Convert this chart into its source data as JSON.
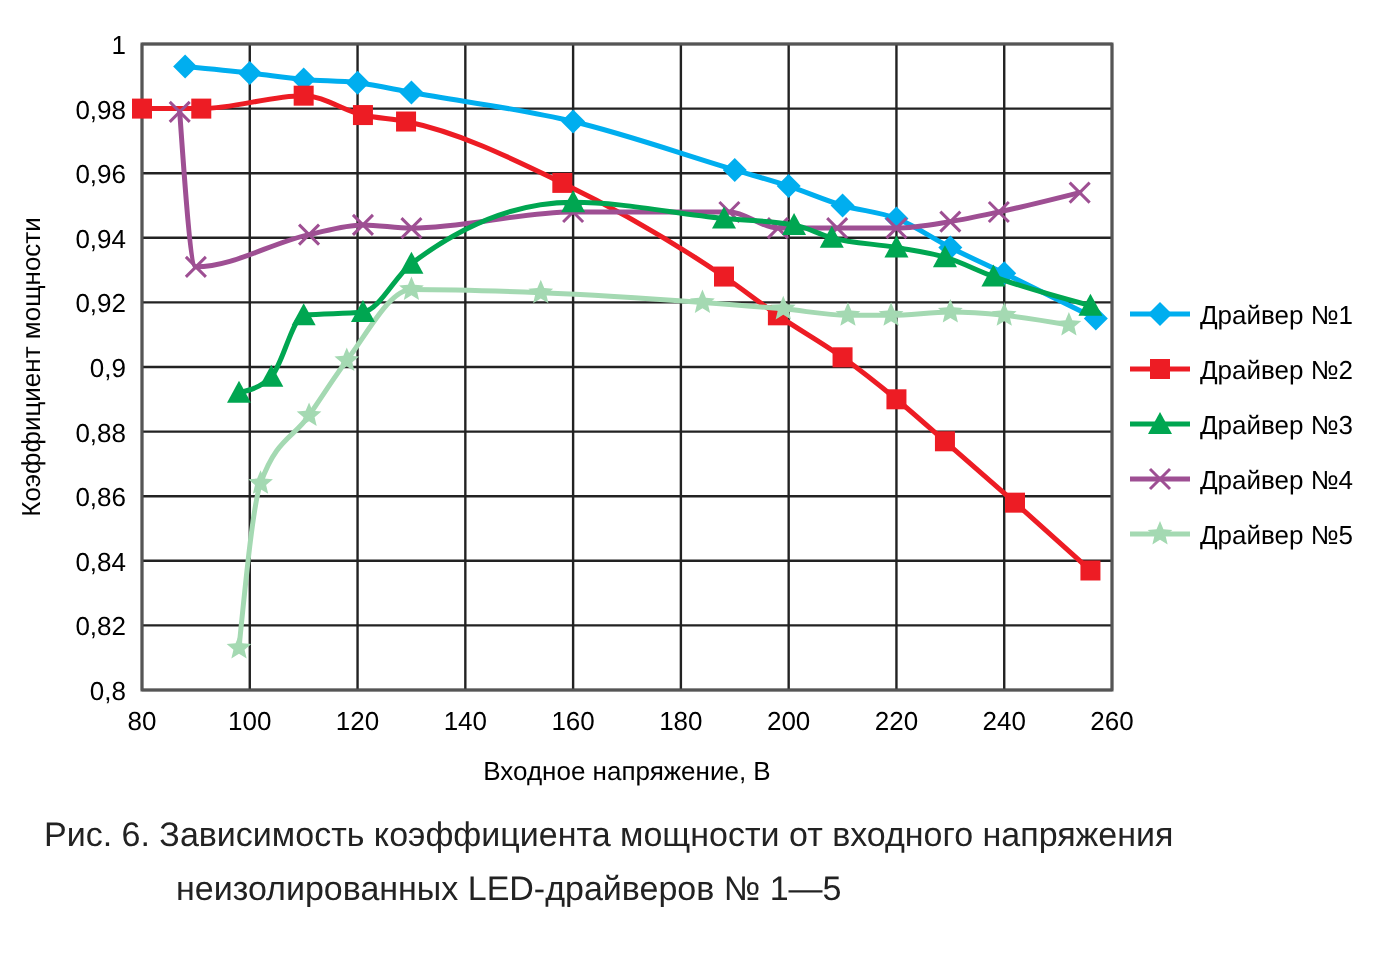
{
  "chart_data": {
    "type": "line",
    "xlabel": "Входное напряжение, В",
    "ylabel": "Коэффициент мощности",
    "xlim": [
      80,
      260
    ],
    "xticks": [
      80,
      100,
      120,
      140,
      160,
      180,
      200,
      220,
      240,
      260
    ],
    "ylim": [
      0.8,
      1
    ],
    "yticks": [
      {
        "value": 0.8,
        "label": "0,8"
      },
      {
        "value": 0.82,
        "label": "0,82"
      },
      {
        "value": 0.84,
        "label": "0,84"
      },
      {
        "value": 0.86,
        "label": "0,86"
      },
      {
        "value": 0.88,
        "label": "0,88"
      },
      {
        "value": 0.9,
        "label": "0,9"
      },
      {
        "value": 0.92,
        "label": "0,92"
      },
      {
        "value": 0.94,
        "label": "0,94"
      },
      {
        "value": 0.96,
        "label": "0,96"
      },
      {
        "value": 0.98,
        "label": "0,98"
      },
      {
        "value": 1,
        "label": "1"
      }
    ],
    "grid": true,
    "legend": "right",
    "line_style": "solid",
    "series": [
      {
        "name": "Драйвер №1",
        "color": "#00aeef",
        "marker": "diamond",
        "x": [
          88,
          100,
          110,
          120,
          130,
          160,
          190,
          200,
          210,
          220,
          230,
          240,
          257
        ],
        "values": [
          0.993,
          0.991,
          0.989,
          0.988,
          0.985,
          0.976,
          0.961,
          0.956,
          0.95,
          0.946,
          0.937,
          0.929,
          0.915
        ]
      },
      {
        "name": "Драйвер №2",
        "color": "#ed1c24",
        "marker": "square",
        "x": [
          80,
          91,
          110,
          121,
          129,
          158,
          188,
          198,
          210,
          220,
          229,
          242,
          256
        ],
        "values": [
          0.98,
          0.98,
          0.984,
          0.978,
          0.976,
          0.957,
          0.928,
          0.916,
          0.903,
          0.89,
          0.877,
          0.858,
          0.837
        ]
      },
      {
        "name": "Драйвер №3",
        "color": "#00a651",
        "marker": "triangle",
        "x": [
          98,
          104,
          110,
          121,
          130,
          160,
          188,
          201,
          208,
          220,
          229,
          238,
          256
        ],
        "values": [
          0.892,
          0.897,
          0.916,
          0.917,
          0.932,
          0.951,
          0.946,
          0.944,
          0.94,
          0.937,
          0.934,
          0.928,
          0.919
        ]
      },
      {
        "name": "Драйвер №4",
        "color": "#9e4f93",
        "marker": "cross",
        "x": [
          87,
          90,
          111,
          121,
          130,
          160,
          189,
          198,
          209,
          220,
          230,
          239,
          254
        ],
        "values": [
          0.979,
          0.931,
          0.941,
          0.944,
          0.943,
          0.948,
          0.948,
          0.943,
          0.943,
          0.943,
          0.945,
          0.948,
          0.954
        ]
      },
      {
        "name": "Драйвер №5",
        "color": "#a4d9b2",
        "marker": "star",
        "x": [
          98,
          102,
          111,
          118,
          130,
          154,
          184,
          199,
          211,
          219,
          230,
          240,
          252
        ],
        "values": [
          0.813,
          0.864,
          0.885,
          0.902,
          0.924,
          0.923,
          0.92,
          0.918,
          0.916,
          0.916,
          0.917,
          0.916,
          0.913
        ]
      }
    ],
    "annotations": [
      "Рис. 6. Зависимость коэффициента мощности от входного напряжения неизолированных LED-драйверов № 1—5"
    ]
  }
}
